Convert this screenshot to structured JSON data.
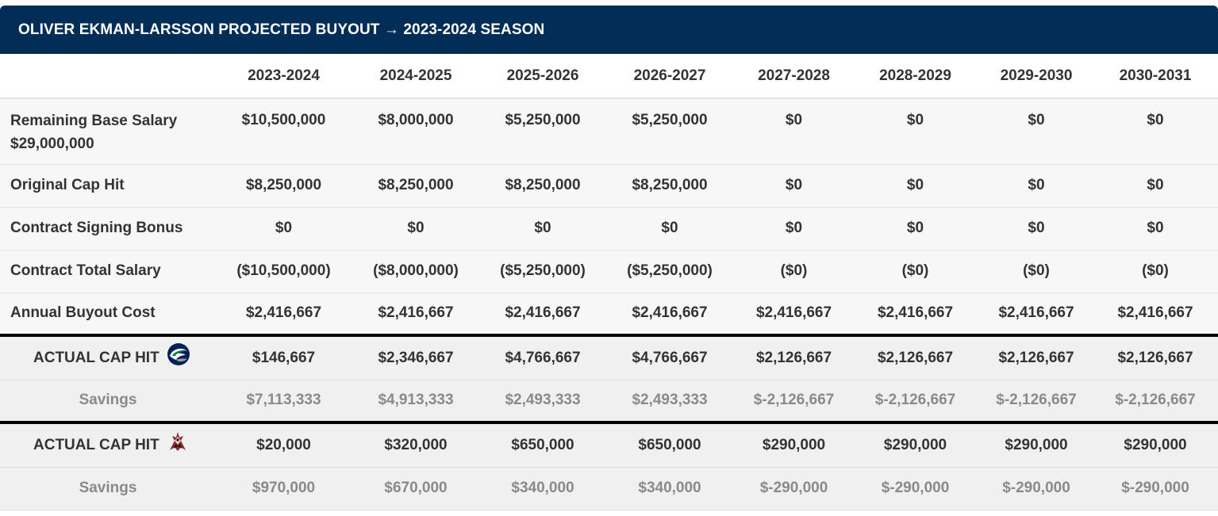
{
  "title": "OLIVER EKMAN-LARSSON PROJECTED BUYOUT → 2023-2024 SEASON",
  "seasons": [
    "2023-2024",
    "2024-2025",
    "2025-2026",
    "2026-2027",
    "2027-2028",
    "2028-2029",
    "2029-2030",
    "2030-2031"
  ],
  "rows": {
    "remaining_base": {
      "label": "Remaining Base Salary",
      "sublabel": "$29,000,000",
      "values": [
        "$10,500,000",
        "$8,000,000",
        "$5,250,000",
        "$5,250,000",
        "$0",
        "$0",
        "$0",
        "$0"
      ]
    },
    "original_cap": {
      "label": "Original Cap Hit",
      "values": [
        "$8,250,000",
        "$8,250,000",
        "$8,250,000",
        "$8,250,000",
        "$0",
        "$0",
        "$0",
        "$0"
      ]
    },
    "signing_bonus": {
      "label": "Contract Signing Bonus",
      "values": [
        "$0",
        "$0",
        "$0",
        "$0",
        "$0",
        "$0",
        "$0",
        "$0"
      ]
    },
    "total_salary": {
      "label": "Contract Total Salary",
      "values": [
        "($10,500,000)",
        "($8,000,000)",
        "($5,250,000)",
        "($5,250,000)",
        "($0)",
        "($0)",
        "($0)",
        "($0)"
      ]
    },
    "buyout_cost": {
      "label": "Annual Buyout Cost",
      "values": [
        "$2,416,667",
        "$2,416,667",
        "$2,416,667",
        "$2,416,667",
        "$2,416,667",
        "$2,416,667",
        "$2,416,667",
        "$2,416,667"
      ]
    }
  },
  "canucks": {
    "label": "ACTUAL CAP HIT",
    "logo_icon": "canucks-orca-logo-icon",
    "values": [
      "$146,667",
      "$2,346,667",
      "$4,766,667",
      "$4,766,667",
      "$2,126,667",
      "$2,126,667",
      "$2,126,667",
      "$2,126,667"
    ],
    "savings_label": "Savings",
    "savings": [
      "$7,113,333",
      "$4,913,333",
      "$2,493,333",
      "$2,493,333",
      "$-2,126,667",
      "$-2,126,667",
      "$-2,126,667",
      "$-2,126,667"
    ]
  },
  "coyotes": {
    "label": "ACTUAL CAP HIT",
    "logo_icon": "coyotes-kachina-logo-icon",
    "values": [
      "$20,000",
      "$320,000",
      "$650,000",
      "$650,000",
      "$290,000",
      "$290,000",
      "$290,000",
      "$290,000"
    ],
    "savings_label": "Savings",
    "savings": [
      "$970,000",
      "$670,000",
      "$340,000",
      "$340,000",
      "$-290,000",
      "$-290,000",
      "$-290,000",
      "$-290,000"
    ]
  },
  "colors": {
    "header_bg": "#012d57",
    "row_bg": "#f7f7f7",
    "actual_bg": "#f0f0f0",
    "savings_text": "#8a8a8a"
  }
}
